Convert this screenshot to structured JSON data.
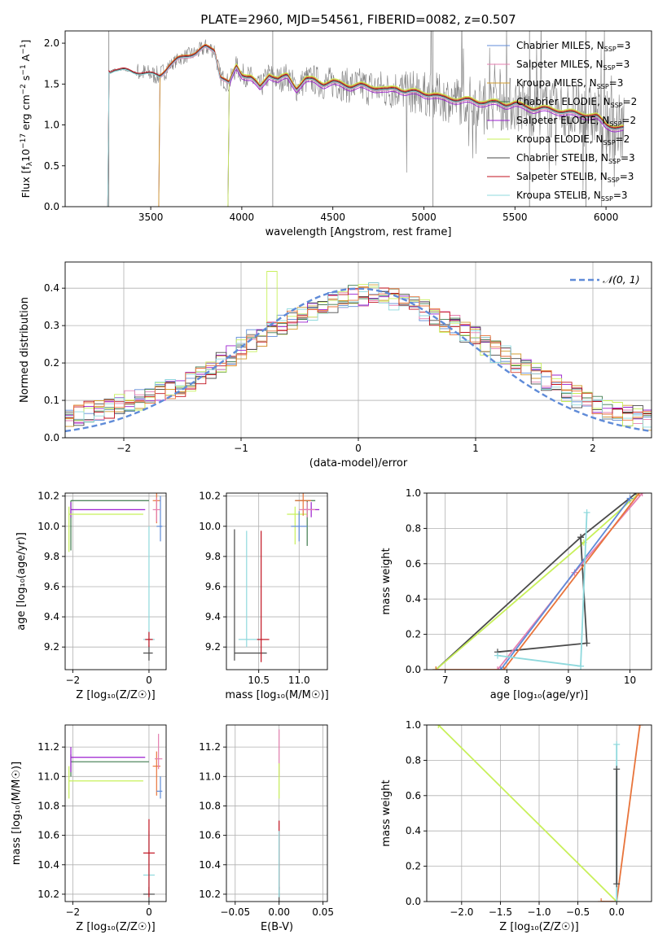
{
  "title": "PLATE=2960, MJD=54561, FIBERID=0082, z=0.507",
  "colors": {
    "chabrier_miles": "#5f8bd8",
    "salpeter_miles": "#e57fb0",
    "kroupa_miles": "#d19b2e",
    "chabrier_elodie": "#3f7a4e",
    "salpeter_elodie": "#9b1fcf",
    "kroupa_elodie": "#c8f05a",
    "chabrier_stelib": "#4a4a4a",
    "salpeter_stelib": "#c1121f",
    "kroupa_stelib": "#8fd9dd",
    "orange": "#e8743b",
    "data": "#7f7f7f",
    "gaussian": "#5f8bd8"
  },
  "chart_data": [
    {
      "type": "line",
      "id": "spectrum",
      "title": "PLATE=2960, MJD=54561, FIBERID=0082, z=0.507",
      "xlabel": "wavelength [Angstrom, rest frame]",
      "ylabel_parts": [
        "Flux [f",
        "λ",
        "10",
        "−17",
        " erg cm",
        "−2",
        " s",
        "−1",
        " A",
        "−1",
        "]"
      ],
      "xlim": [
        3030,
        6250
      ],
      "ylim": [
        0,
        2.15
      ],
      "xticks": [
        3500,
        4000,
        4500,
        5000,
        5500,
        6000
      ],
      "yticks": [
        0.0,
        0.5,
        1.0,
        1.5,
        2.0
      ],
      "legend": [
        {
          "name": "Chabrier MILES, N",
          "sub": "SSP",
          "tail": "=3",
          "color": "chabrier_miles"
        },
        {
          "name": "Salpeter MILES, N",
          "sub": "SSP",
          "tail": "=3",
          "color": "salpeter_miles"
        },
        {
          "name": "Kroupa MILES, N",
          "sub": "SSP",
          "tail": "=3",
          "color": "kroupa_miles"
        },
        {
          "name": "Chabrier ELODIE, N",
          "sub": "SSP",
          "tail": "=2",
          "color": "chabrier_elodie"
        },
        {
          "name": "Salpeter ELODIE, N",
          "sub": "SSP",
          "tail": "=2",
          "color": "salpeter_elodie"
        },
        {
          "name": "Kroupa ELODIE, N",
          "sub": "SSP",
          "tail": "=2",
          "color": "kroupa_elodie"
        },
        {
          "name": "Chabrier STELIB, N",
          "sub": "SSP",
          "tail": "=3",
          "color": "chabrier_stelib"
        },
        {
          "name": "Salpeter STELIB, N",
          "sub": "SSP",
          "tail": "=3",
          "color": "salpeter_stelib"
        },
        {
          "name": "Kroupa STELIB, N",
          "sub": "SSP",
          "tail": "=3",
          "color": "kroupa_stelib"
        }
      ],
      "legend_position": "upper-right",
      "model_continuum": {
        "x": [
          3270,
          3300,
          3350,
          3400,
          3450,
          3500,
          3550,
          3600,
          3650,
          3700,
          3750,
          3800,
          3850,
          3880,
          3930,
          3970,
          4000,
          4050,
          4100,
          4150,
          4200,
          4250,
          4300,
          4350,
          4400,
          4450,
          4500,
          4550,
          4600,
          4650,
          4700,
          4750,
          4800,
          4850,
          4900,
          4950,
          5000,
          5050,
          5100,
          5150,
          5200,
          5250,
          5300,
          5350,
          5400,
          5450,
          5500,
          5550,
          5600,
          5650,
          5700,
          5750,
          5800,
          5850,
          5900,
          5950,
          6000,
          6050,
          6100
        ],
        "y": [
          1.65,
          1.68,
          1.67,
          1.65,
          1.64,
          1.62,
          1.6,
          1.72,
          1.8,
          1.85,
          1.88,
          1.95,
          1.92,
          1.6,
          1.5,
          1.72,
          1.62,
          1.58,
          1.45,
          1.62,
          1.55,
          1.6,
          1.45,
          1.55,
          1.55,
          1.5,
          1.52,
          1.5,
          1.47,
          1.48,
          1.46,
          1.45,
          1.42,
          1.45,
          1.41,
          1.4,
          1.38,
          1.37,
          1.33,
          1.32,
          1.3,
          1.3,
          1.28,
          1.27,
          1.27,
          1.25,
          1.26,
          1.22,
          1.2,
          1.2,
          1.18,
          1.17,
          1.15,
          1.13,
          1.12,
          1.1,
          1.0,
          0.97,
          0.95
        ]
      },
      "model_starts": {
        "miles": 3545,
        "elodie": 3925,
        "stelib": 3265
      },
      "noisy_data_range": [
        3270,
        6100
      ]
    },
    {
      "type": "line",
      "id": "residuals",
      "xlabel": "(data-model)/error",
      "ylabel": "Normed distribution",
      "xlim": [
        -2.5,
        2.5
      ],
      "ylim": [
        0,
        0.47
      ],
      "xticks": [
        -2,
        -1,
        0,
        1,
        2
      ],
      "yticks": [
        0.0,
        0.1,
        0.2,
        0.3,
        0.4
      ],
      "legend": [
        {
          "name": "𝒩(0, 1)",
          "style": "dashed",
          "color": "gaussian"
        }
      ],
      "legend_position": "top-right",
      "gaussian": {
        "mu": 0,
        "sigma": 1
      },
      "bin_width": 0.1,
      "series": [
        {
          "key": "chabrier_miles",
          "values": [
            0.04,
            0.05,
            0.06,
            0.07,
            0.07,
            0.08,
            0.09,
            0.1,
            0.1,
            0.11,
            0.12,
            0.13,
            0.14,
            0.15,
            0.17,
            0.18,
            0.2,
            0.22,
            0.24,
            0.26,
            0.27,
            0.29,
            0.3,
            0.32,
            0.33,
            0.34,
            0.35,
            0.36,
            0.37,
            0.38,
            0.38,
            0.39,
            0.38,
            0.37,
            0.36,
            0.35,
            0.34,
            0.32,
            0.31,
            0.3,
            0.28,
            0.27,
            0.25,
            0.23,
            0.22,
            0.2,
            0.18,
            0.17,
            0.15,
            0.14,
            0.12,
            0.11,
            0.1,
            0.09,
            0.08,
            0.07,
            0.06,
            0.06,
            0.05,
            0.05
          ]
        }
      ]
    },
    {
      "type": "scatter",
      "id": "age_vs_Z",
      "xlabel": "Z [log₁₀(Z/Z☉)]",
      "ylabel": "age  [log₁₀(age/yr)]",
      "xlim": [
        -2.2,
        0.45
      ],
      "ylim": [
        9.05,
        10.22
      ],
      "xticks": [
        -2,
        0
      ],
      "yticks": [
        9.2,
        9.4,
        9.6,
        9.8,
        10.0,
        10.2
      ]
    },
    {
      "type": "scatter",
      "id": "age_vs_mass",
      "xlabel": "mass [log₁₀(M/M☉)]",
      "ylabel": "",
      "xlim": [
        10.1,
        11.35
      ],
      "ylim": [
        9.05,
        10.22
      ],
      "xticks": [
        10.5,
        11.0
      ],
      "yticks": [
        9.2,
        9.4,
        9.6,
        9.8,
        10.0,
        10.2
      ]
    },
    {
      "type": "line",
      "id": "massweight_vs_age",
      "xlabel": "age  [log₁₀(age/yr)]",
      "ylabel": "mass weight",
      "xlim": [
        6.7,
        10.35
      ],
      "ylim": [
        0,
        1
      ],
      "xticks": [
        7,
        8,
        9,
        10
      ],
      "yticks": [
        0.0,
        0.2,
        0.4,
        0.6,
        0.8,
        1.0
      ]
    },
    {
      "type": "scatter",
      "id": "mass_vs_Z",
      "xlabel": "Z [log₁₀(Z/Z☉)]",
      "ylabel": "mass [log₁₀(M/M☉)]",
      "xlim": [
        -2.2,
        0.45
      ],
      "ylim": [
        10.15,
        11.35
      ],
      "xticks": [
        -2,
        0
      ],
      "yticks": [
        10.2,
        10.4,
        10.6,
        10.8,
        11.0,
        11.2
      ]
    },
    {
      "type": "scatter",
      "id": "mass_vs_ebv",
      "xlabel": "E(B-V)",
      "ylabel": "",
      "xlim": [
        -0.06,
        0.055
      ],
      "ylim": [
        10.15,
        11.35
      ],
      "xticks": [
        -0.05,
        0.0,
        0.05
      ],
      "xtick_labels": [
        "−0.05",
        "0.00",
        "0.05"
      ],
      "yticks": [
        10.2,
        10.4,
        10.6,
        10.8,
        11.0,
        11.2
      ]
    },
    {
      "type": "line",
      "id": "massweight_vs_Z",
      "xlabel": "Z [log₁₀(Z/Z☉)]",
      "ylabel": "mass weight",
      "xlim": [
        -2.45,
        0.45
      ],
      "ylim": [
        0,
        1
      ],
      "xticks": [
        -2.0,
        -1.5,
        -1.0,
        -0.5,
        0.0
      ],
      "xtick_labels": [
        "−2.0",
        "−1.5",
        "−1.0",
        "−0.5",
        "0.0"
      ],
      "yticks": [
        0.0,
        0.2,
        0.4,
        0.6,
        0.8,
        1.0
      ]
    }
  ],
  "points": {
    "age_Z": [
      {
        "c": "chabrier_elodie",
        "x": -2.05,
        "y": 10.17,
        "xl": 0.0,
        "xh": 2.05,
        "yl": 0.33,
        "yh": 0.0
      },
      {
        "c": "salpeter_elodie",
        "x": -2.05,
        "y": 10.11,
        "xl": 0.0,
        "xh": 1.95,
        "yl": 0.05,
        "yh": 0.05
      },
      {
        "c": "kroupa_elodie",
        "x": -2.1,
        "y": 10.08,
        "xl": 0.0,
        "xh": 1.95,
        "yl": 0.25,
        "yh": 0.05
      },
      {
        "c": "orange",
        "x": 0.2,
        "y": 10.17,
        "xl": 0.1,
        "xh": 0.1,
        "yl": 0.15,
        "yh": 0.05
      },
      {
        "c": "chabrier_miles",
        "x": 0.3,
        "y": 10.0,
        "xl": 0.1,
        "xh": 0.05,
        "yl": 0.1,
        "yh": 0.2
      },
      {
        "c": "salpeter_miles",
        "x": 0.2,
        "y": 10.11,
        "xl": 0.1,
        "xh": 0.1,
        "yl": 0.08,
        "yh": 0.08
      },
      {
        "c": "chabrier_stelib",
        "x": 0.0,
        "y": 9.16,
        "xl": 0.15,
        "xh": 0.1,
        "yl": 0.05,
        "yh": 0.05
      },
      {
        "c": "kroupa_stelib",
        "x": 0.0,
        "y": 9.25,
        "xl": 0.15,
        "xh": 0.15,
        "yl": 0.05,
        "yh": 0.75
      },
      {
        "c": "salpeter_stelib",
        "x": 0.0,
        "y": 9.25,
        "xl": 0.1,
        "xh": 0.1,
        "yl": 0.05,
        "yh": 0.05
      }
    ],
    "age_mass": [
      {
        "c": "chabrier_elodie",
        "x": 11.1,
        "y": 10.17,
        "xl": 0.15,
        "xh": 0.1,
        "yl": 0.3,
        "yh": 0.0
      },
      {
        "c": "salpeter_elodie",
        "x": 11.15,
        "y": 10.11,
        "xl": 0.1,
        "xh": 0.1,
        "yl": 0.05,
        "yh": 0.05
      },
      {
        "c": "kroupa_elodie",
        "x": 10.95,
        "y": 10.08,
        "xl": 0.1,
        "xh": 0.15,
        "yl": 0.2,
        "yh": 0.05
      },
      {
        "c": "orange",
        "x": 11.05,
        "y": 10.17,
        "xl": 0.1,
        "xh": 0.1,
        "yl": 0.1,
        "yh": 0.05
      },
      {
        "c": "chabrier_miles",
        "x": 11.0,
        "y": 10.0,
        "xl": 0.1,
        "xh": 0.1,
        "yl": 0.1,
        "yh": 0.1
      },
      {
        "c": "salpeter_miles",
        "x": 11.1,
        "y": 10.11,
        "xl": 0.1,
        "xh": 0.1,
        "yl": 0.05,
        "yh": 0.05
      },
      {
        "c": "chabrier_stelib",
        "x": 10.2,
        "y": 9.16,
        "xl": 0.0,
        "xh": 0.4,
        "yl": 0.05,
        "yh": 0.82
      },
      {
        "c": "kroupa_stelib",
        "x": 10.35,
        "y": 9.25,
        "xl": 0.1,
        "xh": 0.15,
        "yl": 0.05,
        "yh": 0.72
      },
      {
        "c": "salpeter_stelib",
        "x": 10.53,
        "y": 9.25,
        "xl": 0.05,
        "xh": 0.1,
        "yl": 0.15,
        "yh": 0.72
      }
    ],
    "mass_Z": [
      {
        "c": "chabrier_elodie",
        "x": -2.05,
        "y": 11.1,
        "xl": 0.0,
        "xh": 2.05,
        "yl": 0.1,
        "yh": 0.05
      },
      {
        "c": "salpeter_elodie",
        "x": -2.05,
        "y": 11.13,
        "xl": 0.0,
        "xh": 1.95,
        "yl": 0.1,
        "yh": 0.07
      },
      {
        "c": "kroupa_elodie",
        "x": -2.1,
        "y": 10.97,
        "xl": 0.0,
        "xh": 1.95,
        "yl": 0.12,
        "yh": 0.1
      },
      {
        "c": "orange",
        "x": 0.2,
        "y": 11.07,
        "xl": 0.1,
        "xh": 0.1,
        "yl": 0.2,
        "yh": 0.1
      },
      {
        "c": "chabrier_miles",
        "x": 0.3,
        "y": 10.9,
        "xl": 0.1,
        "xh": 0.05,
        "yl": 0.05,
        "yh": 0.1
      },
      {
        "c": "salpeter_miles",
        "x": 0.25,
        "y": 11.12,
        "xl": 0.1,
        "xh": 0.1,
        "yl": 0.07,
        "yh": 0.17
      },
      {
        "c": "chabrier_stelib",
        "x": 0.0,
        "y": 10.2,
        "xl": 0.15,
        "xh": 0.15,
        "yl": 0.05,
        "yh": 0.05
      },
      {
        "c": "kroupa_stelib",
        "x": 0.0,
        "y": 10.33,
        "xl": 0.15,
        "xh": 0.15,
        "yl": 0.1,
        "yh": 0.3
      },
      {
        "c": "salpeter_stelib",
        "x": 0.0,
        "y": 10.48,
        "xl": 0.15,
        "xh": 0.15,
        "yl": 0.3,
        "yh": 0.23
      }
    ],
    "mass_ebv": [
      {
        "c": "salpeter_miles",
        "x": 0.0,
        "y": 11.12,
        "yl": 0.12,
        "yh": 0.2
      },
      {
        "c": "kroupa_elodie",
        "x": 0.0,
        "y": 10.97,
        "yl": 0.12,
        "yh": 0.12
      },
      {
        "c": "chabrier_stelib",
        "x": 0.0,
        "y": 10.2,
        "yl": 0.05,
        "yh": 0.05
      },
      {
        "c": "salpeter_stelib",
        "x": 0.0,
        "y": 10.48,
        "yl": 0.25,
        "yh": 0.22
      },
      {
        "c": "kroupa_stelib",
        "x": 0.0,
        "y": 10.33,
        "yl": 0.15,
        "yh": 0.3
      }
    ]
  },
  "weight_lines": {
    "age": [
      {
        "c": "chabrier_stelib",
        "pts": [
          [
            6.85,
            0.0
          ],
          [
            9.2,
            0.75
          ],
          [
            10.1,
            1.0
          ]
        ]
      },
      {
        "c": "kroupa_elodie",
        "pts": [
          [
            6.85,
            0.0
          ],
          [
            9.25,
            0.72
          ],
          [
            10.15,
            1.0
          ]
        ]
      },
      {
        "c": "chabrier_stelib",
        "pts": [
          [
            7.85,
            0.1
          ],
          [
            9.3,
            0.15
          ],
          [
            9.2,
            0.75
          ]
        ]
      },
      {
        "c": "salpeter_miles",
        "pts": [
          [
            7.85,
            0.0
          ],
          [
            9.1,
            0.55
          ],
          [
            10.2,
            1.0
          ]
        ]
      },
      {
        "c": "orange",
        "pts": [
          [
            6.85,
            0.0
          ],
          [
            7.95,
            0.0
          ],
          [
            10.15,
            1.0
          ]
        ]
      },
      {
        "c": "chabrier_miles",
        "pts": [
          [
            7.9,
            0.0
          ],
          [
            10.0,
            0.97
          ]
        ]
      },
      {
        "c": "kroupa_stelib",
        "pts": [
          [
            7.85,
            0.08
          ],
          [
            9.2,
            0.02
          ],
          [
            9.3,
            0.89
          ],
          [
            9.2,
            0.02
          ]
        ]
      }
    ],
    "Z": [
      {
        "c": "kroupa_elodie",
        "pts": [
          [
            -2.3,
            1.0
          ],
          [
            0.0,
            0.0
          ]
        ]
      },
      {
        "c": "orange",
        "pts": [
          [
            -0.2,
            0.0
          ],
          [
            0.0,
            0.0
          ],
          [
            0.3,
            1.0
          ]
        ]
      },
      {
        "c": "kroupa_stelib",
        "pts": [
          [
            0.0,
            0.0
          ],
          [
            0.0,
            0.89
          ]
        ]
      },
      {
        "c": "chabrier_stelib",
        "pts": [
          [
            0.0,
            0.1
          ],
          [
            0.0,
            0.75
          ]
        ]
      }
    ]
  }
}
